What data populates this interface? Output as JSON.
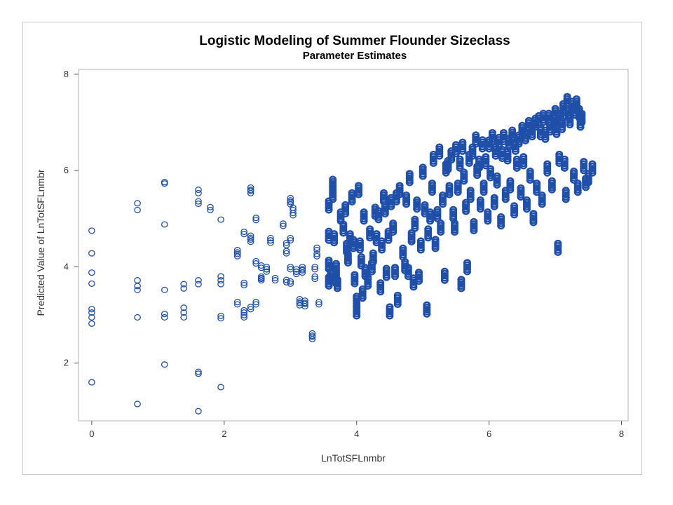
{
  "chart_data": {
    "type": "scatter",
    "title": "Logistic Modeling of Summer Flounder Sizeclass",
    "subtitle": "Parameter Estimates",
    "xlabel": "LnTotSFLnmbr",
    "ylabel": "Predicted Value of LnTotSFLnmbr",
    "xlim": [
      -0.2,
      8.1
    ],
    "ylim": [
      0.8,
      8.1
    ],
    "xticks": [
      0,
      2,
      4,
      6,
      8
    ],
    "yticks": [
      2,
      4,
      6,
      8
    ],
    "grid": false,
    "marker_color": "#1f4fa8",
    "marker": "hollow-circle",
    "series": [
      {
        "points": [
          [
            0,
            4.75
          ],
          [
            0,
            4.28
          ],
          [
            0,
            3.88
          ],
          [
            0,
            3.65
          ],
          [
            0,
            3.12
          ],
          [
            0,
            3.05
          ],
          [
            0,
            2.95
          ],
          [
            0,
            2.82
          ],
          [
            0,
            1.6
          ],
          [
            0.69,
            5.32
          ],
          [
            0.69,
            5.18
          ],
          [
            0.69,
            3.72
          ],
          [
            0.69,
            3.6
          ],
          [
            0.69,
            3.52
          ],
          [
            0.69,
            2.95
          ],
          [
            0.69,
            1.15
          ],
          [
            1.1,
            5.76
          ],
          [
            1.1,
            5.73
          ],
          [
            1.1,
            4.88
          ],
          [
            1.1,
            3.52
          ],
          [
            1.1,
            3.02
          ],
          [
            1.1,
            2.95
          ],
          [
            1.1,
            1.97
          ],
          [
            1.39,
            3.64
          ],
          [
            1.39,
            3.55
          ],
          [
            1.39,
            3.15
          ],
          [
            1.39,
            3.05
          ],
          [
            1.39,
            2.95
          ],
          [
            1.61,
            5.6
          ],
          [
            1.61,
            5.53
          ],
          [
            1.61,
            5.36
          ],
          [
            1.61,
            5.31
          ],
          [
            1.61,
            3.72
          ],
          [
            1.61,
            3.64
          ],
          [
            1.61,
            1.82
          ],
          [
            1.61,
            1.78
          ],
          [
            1.61,
            1.0
          ],
          [
            1.79,
            5.24
          ],
          [
            1.79,
            5.18
          ],
          [
            1.95,
            4.98
          ],
          [
            1.95,
            3.8
          ],
          [
            1.95,
            3.72
          ],
          [
            1.95,
            3.64
          ],
          [
            1.95,
            2.98
          ],
          [
            1.95,
            2.93
          ],
          [
            1.95,
            1.5
          ],
          [
            2.2,
            4.3
          ],
          [
            2.2,
            4.22
          ],
          [
            2.2,
            3.22
          ],
          [
            2.3,
            4.68
          ],
          [
            2.3,
            3.62
          ],
          [
            2.3,
            3.05
          ],
          [
            2.3,
            2.95
          ],
          [
            2.4,
            5.6
          ],
          [
            2.4,
            5.53
          ],
          [
            2.4,
            4.6
          ],
          [
            2.4,
            4.52
          ],
          [
            2.4,
            3.12
          ],
          [
            2.48,
            4.97
          ],
          [
            2.48,
            4.07
          ],
          [
            2.48,
            3.22
          ],
          [
            2.56,
            3.98
          ],
          [
            2.56,
            3.75
          ],
          [
            2.56,
            3.72
          ],
          [
            2.64,
            3.95
          ],
          [
            2.64,
            3.9
          ],
          [
            2.7,
            4.55
          ],
          [
            2.7,
            4.5
          ],
          [
            2.77,
            3.72
          ],
          [
            2.89,
            4.85
          ],
          [
            2.94,
            4.45
          ],
          [
            2.94,
            4.28
          ],
          [
            2.94,
            3.68
          ],
          [
            3.0,
            5.38
          ],
          [
            3.0,
            5.3
          ],
          [
            3.0,
            4.55
          ],
          [
            3.0,
            3.95
          ],
          [
            3.0,
            3.65
          ],
          [
            3.04,
            5.18
          ],
          [
            3.04,
            5.07
          ],
          [
            3.09,
            3.9
          ],
          [
            3.09,
            3.85
          ],
          [
            3.14,
            3.28
          ],
          [
            3.14,
            3.2
          ],
          [
            3.18,
            3.95
          ],
          [
            3.18,
            3.88
          ],
          [
            3.22,
            3.25
          ],
          [
            3.22,
            3.18
          ],
          [
            3.33,
            2.57
          ],
          [
            3.33,
            2.5
          ],
          [
            3.37,
            3.95
          ],
          [
            3.37,
            3.75
          ],
          [
            3.4,
            4.35
          ],
          [
            3.4,
            4.22
          ],
          [
            3.43,
            3.22
          ],
          [
            3.58,
            5.18
          ],
          [
            3.58,
            4.55
          ],
          [
            3.58,
            3.95
          ],
          [
            3.58,
            3.6
          ],
          [
            3.61,
            3.72
          ],
          [
            3.64,
            5.63
          ],
          [
            3.64,
            5.4
          ],
          [
            3.66,
            4.5
          ],
          [
            3.69,
            3.88
          ],
          [
            3.69,
            3.65
          ],
          [
            3.71,
            3.55
          ],
          [
            3.76,
            4.95
          ],
          [
            3.8,
            4.7
          ],
          [
            3.83,
            5.1
          ],
          [
            3.85,
            4.3
          ],
          [
            3.87,
            4.08
          ],
          [
            3.9,
            4.5
          ],
          [
            3.93,
            5.35
          ],
          [
            3.95,
            4.38
          ],
          [
            3.97,
            3.65
          ],
          [
            4.0,
            3.2
          ],
          [
            4.0,
            2.98
          ],
          [
            4.03,
            5.5
          ],
          [
            4.05,
            4.35
          ],
          [
            4.07,
            4.02
          ],
          [
            4.09,
            3.35
          ],
          [
            4.11,
            4.95
          ],
          [
            4.13,
            3.8
          ],
          [
            4.17,
            3.6
          ],
          [
            4.2,
            4.6
          ],
          [
            4.23,
            3.9
          ],
          [
            4.25,
            4.1
          ],
          [
            4.28,
            5.05
          ],
          [
            4.3,
            4.5
          ],
          [
            4.33,
            4.98
          ],
          [
            4.36,
            3.48
          ],
          [
            4.38,
            4.35
          ],
          [
            4.41,
            5.35
          ],
          [
            4.43,
            5.1
          ],
          [
            4.45,
            3.78
          ],
          [
            4.48,
            4.55
          ],
          [
            4.5,
            2.98
          ],
          [
            4.52,
            5.25
          ],
          [
            4.55,
            4.72
          ],
          [
            4.58,
            3.8
          ],
          [
            4.6,
            5.35
          ],
          [
            4.62,
            3.22
          ],
          [
            4.65,
            5.5
          ],
          [
            4.7,
            4.2
          ],
          [
            4.73,
            3.92
          ],
          [
            4.75,
            5.3
          ],
          [
            4.78,
            3.8
          ],
          [
            4.8,
            5.75
          ],
          [
            4.83,
            4.52
          ],
          [
            4.86,
            3.58
          ],
          [
            4.88,
            4.8
          ],
          [
            4.91,
            5.2
          ],
          [
            4.94,
            3.7
          ],
          [
            4.97,
            4.35
          ],
          [
            5.0,
            5.88
          ],
          [
            5.03,
            5.1
          ],
          [
            5.06,
            3.02
          ],
          [
            5.08,
            4.6
          ],
          [
            5.11,
            4.95
          ],
          [
            5.14,
            5.55
          ],
          [
            5.16,
            6.15
          ],
          [
            5.19,
            4.38
          ],
          [
            5.22,
            5.0
          ],
          [
            5.25,
            6.3
          ],
          [
            5.27,
            4.72
          ],
          [
            5.3,
            5.3
          ],
          [
            5.33,
            3.72
          ],
          [
            5.35,
            5.95
          ],
          [
            5.38,
            6.02
          ],
          [
            5.4,
            5.5
          ],
          [
            5.43,
            6.22
          ],
          [
            5.46,
            5.0
          ],
          [
            5.48,
            4.72
          ],
          [
            5.5,
            6.35
          ],
          [
            5.53,
            5.55
          ],
          [
            5.56,
            6.05
          ],
          [
            5.58,
            3.55
          ],
          [
            5.6,
            6.4
          ],
          [
            5.62,
            5.78
          ],
          [
            5.65,
            5.15
          ],
          [
            5.67,
            3.9
          ],
          [
            5.7,
            6.15
          ],
          [
            5.72,
            5.4
          ],
          [
            5.75,
            6.3
          ],
          [
            5.77,
            4.75
          ],
          [
            5.8,
            6.55
          ],
          [
            5.82,
            5.9
          ],
          [
            5.85,
            6.05
          ],
          [
            5.87,
            5.2
          ],
          [
            5.9,
            6.45
          ],
          [
            5.92,
            5.55
          ],
          [
            5.95,
            6.1
          ],
          [
            5.98,
            4.95
          ],
          [
            6.0,
            6.45
          ],
          [
            6.02,
            5.85
          ],
          [
            6.05,
            6.6
          ],
          [
            6.08,
            5.25
          ],
          [
            6.1,
            6.3
          ],
          [
            6.12,
            5.7
          ],
          [
            6.15,
            6.5
          ],
          [
            6.18,
            4.85
          ],
          [
            6.2,
            6.25
          ],
          [
            6.22,
            6.6
          ],
          [
            6.25,
            5.4
          ],
          [
            6.28,
            6.2
          ],
          [
            6.3,
            6.48
          ],
          [
            6.32,
            5.6
          ],
          [
            6.35,
            6.65
          ],
          [
            6.38,
            5.08
          ],
          [
            6.4,
            6.4
          ],
          [
            6.42,
            6.05
          ],
          [
            6.45,
            6.55
          ],
          [
            6.48,
            5.45
          ],
          [
            6.5,
            6.75
          ],
          [
            6.52,
            6.1
          ],
          [
            6.55,
            6.62
          ],
          [
            6.57,
            5.2
          ],
          [
            6.6,
            6.85
          ],
          [
            6.62,
            5.8
          ],
          [
            6.65,
            6.7
          ],
          [
            6.67,
            4.92
          ],
          [
            6.7,
            6.9
          ],
          [
            6.72,
            5.55
          ],
          [
            6.75,
            6.95
          ],
          [
            6.78,
            6.7
          ],
          [
            6.8,
            5.3
          ],
          [
            6.82,
            7.0
          ],
          [
            6.85,
            6.65
          ],
          [
            6.88,
            5.95
          ],
          [
            6.9,
            7.0
          ],
          [
            6.92,
            6.8
          ],
          [
            6.95,
            5.6
          ],
          [
            6.98,
            6.95
          ],
          [
            7.0,
            7.1
          ],
          [
            7.02,
            6.75
          ],
          [
            7.04,
            4.3
          ],
          [
            7.06,
            6.15
          ],
          [
            7.08,
            7.0
          ],
          [
            7.1,
            6.85
          ],
          [
            7.12,
            7.2
          ],
          [
            7.14,
            6.05
          ],
          [
            7.16,
            5.4
          ],
          [
            7.18,
            7.35
          ],
          [
            7.2,
            7.1
          ],
          [
            7.22,
            6.95
          ],
          [
            7.25,
            7.25
          ],
          [
            7.28,
            5.8
          ],
          [
            7.3,
            7.15
          ],
          [
            7.32,
            7.3
          ],
          [
            7.34,
            5.55
          ],
          [
            7.36,
            7.1
          ],
          [
            7.38,
            6.9
          ],
          [
            7.4,
            7.0
          ],
          [
            7.43,
            6.0
          ],
          [
            7.46,
            5.65
          ],
          [
            7.5,
            5.75
          ],
          [
            7.56,
            5.95
          ]
        ]
      }
    ]
  }
}
